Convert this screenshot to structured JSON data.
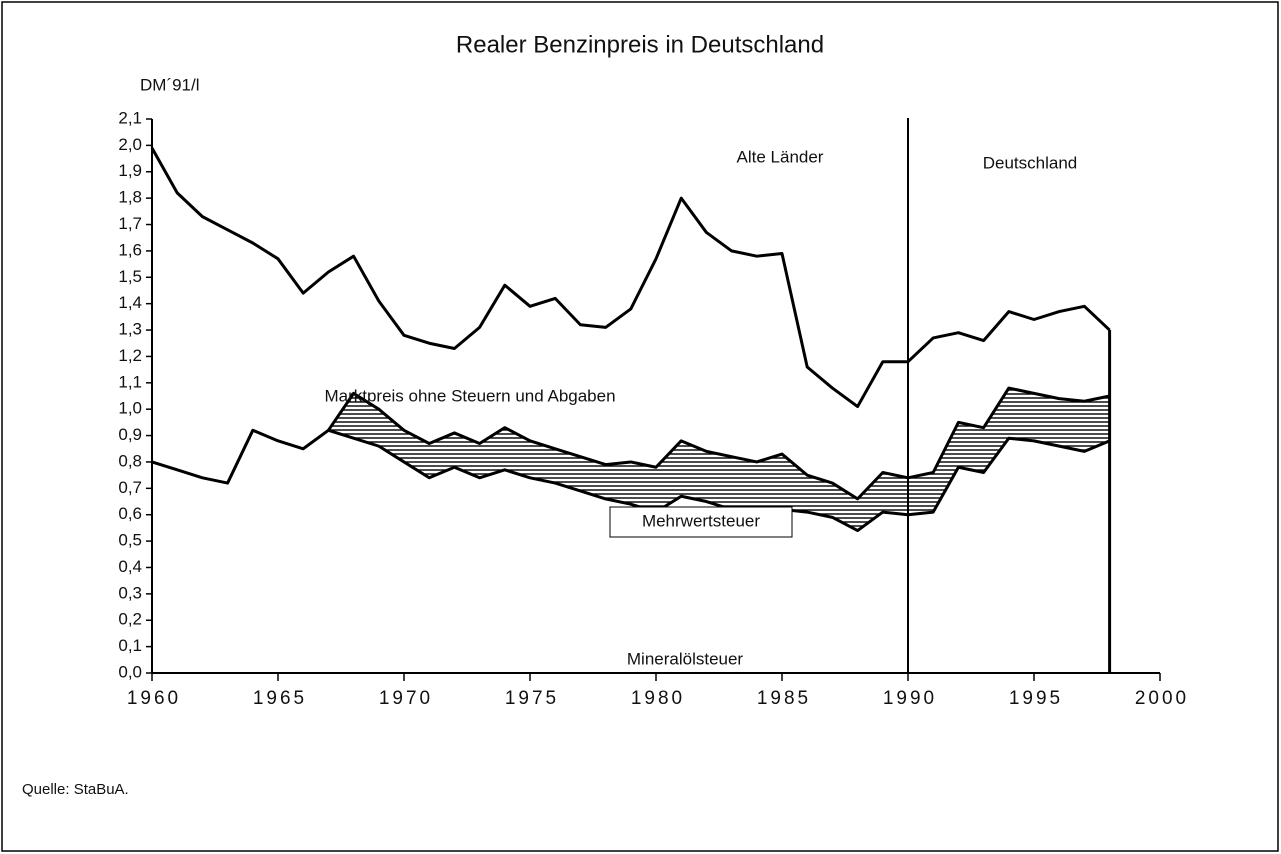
{
  "chart_data": {
    "type": "stacked_area",
    "title": "Realer Benzinpreis in Deutschland",
    "y_label": "DM´91/l",
    "source": "Quelle: StaBuA.",
    "categories": [
      1960,
      1961,
      1962,
      1963,
      1964,
      1965,
      1966,
      1967,
      1968,
      1969,
      1970,
      1971,
      1972,
      1973,
      1974,
      1975,
      1976,
      1977,
      1978,
      1979,
      1980,
      1981,
      1982,
      1983,
      1984,
      1985,
      1986,
      1987,
      1988,
      1989,
      1990,
      1991,
      1992,
      1993,
      1994,
      1995,
      1996,
      1997,
      1998
    ],
    "series": [
      {
        "name": "Mineralölsteuer",
        "color": "#000000",
        "hatched": false,
        "values": [
          0.8,
          0.77,
          0.74,
          0.72,
          0.92,
          0.88,
          0.85,
          0.92,
          0.89,
          0.86,
          0.8,
          0.74,
          0.78,
          0.74,
          0.77,
          0.74,
          0.72,
          0.69,
          0.66,
          0.64,
          0.61,
          0.67,
          0.65,
          0.62,
          0.62,
          0.62,
          0.61,
          0.59,
          0.54,
          0.61,
          0.6,
          0.61,
          0.78,
          0.76,
          0.89,
          0.88,
          0.86,
          0.84,
          0.88
        ]
      },
      {
        "name": "Mehrwertsteuer",
        "color": "#000000",
        "hatched": true,
        "values": [
          null,
          null,
          null,
          null,
          null,
          null,
          null,
          0.0,
          0.17,
          0.14,
          0.12,
          0.13,
          0.13,
          0.13,
          0.16,
          0.14,
          0.13,
          0.13,
          0.13,
          0.16,
          0.17,
          0.21,
          0.19,
          0.2,
          0.18,
          0.21,
          0.14,
          0.13,
          0.12,
          0.15,
          0.14,
          0.15,
          0.17,
          0.17,
          0.19,
          0.18,
          0.18,
          0.19,
          0.17
        ]
      },
      {
        "name": "Marktpreis ohne Steuern und Abgaben",
        "color": "#000000",
        "hatched": false,
        "values": [
          1.19,
          1.05,
          0.99,
          0.96,
          0.71,
          0.69,
          0.59,
          0.6,
          0.52,
          0.41,
          0.36,
          0.38,
          0.32,
          0.44,
          0.54,
          0.51,
          0.57,
          0.5,
          0.52,
          0.58,
          0.79,
          0.92,
          0.83,
          0.78,
          0.78,
          0.76,
          0.41,
          0.36,
          0.35,
          0.42,
          0.44,
          0.51,
          0.34,
          0.33,
          0.29,
          0.28,
          0.33,
          0.36,
          0.25
        ]
      }
    ],
    "divider": 1990,
    "annotations": [
      "Alte Länder",
      "Deutschland"
    ],
    "xlim": [
      1960,
      2000
    ],
    "xticks": [
      1960,
      1965,
      1970,
      1975,
      1980,
      1985,
      1990,
      1995,
      2000
    ],
    "ylim": [
      0,
      2.1
    ],
    "yticks": [
      {
        "value": 0,
        "label": "0,0"
      },
      {
        "value": 0.1,
        "label": "0,1"
      },
      {
        "value": 0.2,
        "label": "0,2"
      },
      {
        "value": 0.3,
        "label": "0,3"
      },
      {
        "value": 0.4,
        "label": "0,4"
      },
      {
        "value": 0.5,
        "label": "0,5"
      },
      {
        "value": 0.6,
        "label": "0,6"
      },
      {
        "value": 0.7,
        "label": "0,7"
      },
      {
        "value": 0.8,
        "label": "0,8"
      },
      {
        "value": 0.9,
        "label": "0,9"
      },
      {
        "value": 1.0,
        "label": "1,0"
      },
      {
        "value": 1.1,
        "label": "1,1"
      },
      {
        "value": 1.2,
        "label": "1,2"
      },
      {
        "value": 1.3,
        "label": "1,3"
      },
      {
        "value": 1.4,
        "label": "1,4"
      },
      {
        "value": 1.5,
        "label": "1,5"
      },
      {
        "value": 1.6,
        "label": "1,6"
      },
      {
        "value": 1.7,
        "label": "1,7"
      },
      {
        "value": 1.8,
        "label": "1,8"
      },
      {
        "value": 1.9,
        "label": "1,9"
      },
      {
        "value": 2.0,
        "label": "2,0"
      },
      {
        "value": 2.1,
        "label": "2,1"
      }
    ],
    "grid": false
  }
}
